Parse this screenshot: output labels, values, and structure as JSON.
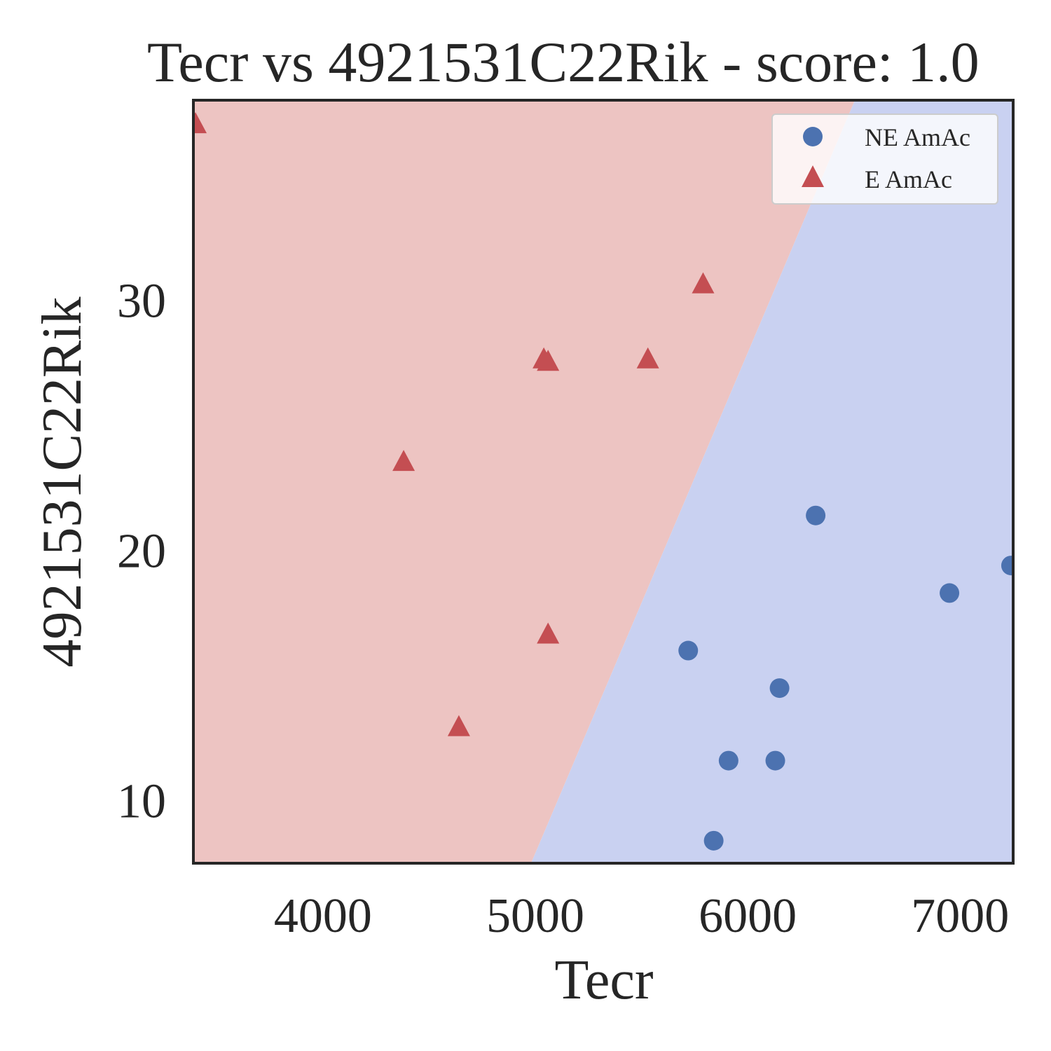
{
  "chart_data": {
    "type": "scatter",
    "title": "Tecr vs 4921531C22Rik - score: 1.0",
    "xlabel": "Tecr",
    "ylabel": "4921531C22Rik",
    "xlim": [
      3390,
      7250
    ],
    "ylim": [
      7.5,
      38.0
    ],
    "x_ticks": [
      4000,
      5000,
      6000,
      7000
    ],
    "y_ticks": [
      10,
      20,
      30
    ],
    "grid": false,
    "legend_position": "top-right",
    "decision_boundary": {
      "points": [
        [
          4980,
          7.5
        ],
        [
          6505,
          38.0
        ]
      ],
      "left_region": "E AmAc",
      "right_region": "NE AmAc",
      "left_color": "#edc4c2",
      "right_color": "#c9d1f1"
    },
    "series": [
      {
        "name": "NE AmAc",
        "marker": "circle",
        "color": "#4c72b0",
        "points": [
          [
            6320,
            21.4
          ],
          [
            7240,
            19.4
          ],
          [
            6950,
            18.3
          ],
          [
            5720,
            16.0
          ],
          [
            6150,
            14.5
          ],
          [
            5910,
            11.6
          ],
          [
            6130,
            11.6
          ],
          [
            5840,
            8.4
          ]
        ]
      },
      {
        "name": "E AmAc",
        "marker": "triangle",
        "color": "#c44e52",
        "points": [
          [
            3400,
            37.0
          ],
          [
            5790,
            30.6
          ],
          [
            5040,
            27.6
          ],
          [
            5060,
            27.5
          ],
          [
            5530,
            27.6
          ],
          [
            4380,
            23.5
          ],
          [
            5060,
            16.6
          ],
          [
            4640,
            12.9
          ]
        ]
      }
    ]
  }
}
